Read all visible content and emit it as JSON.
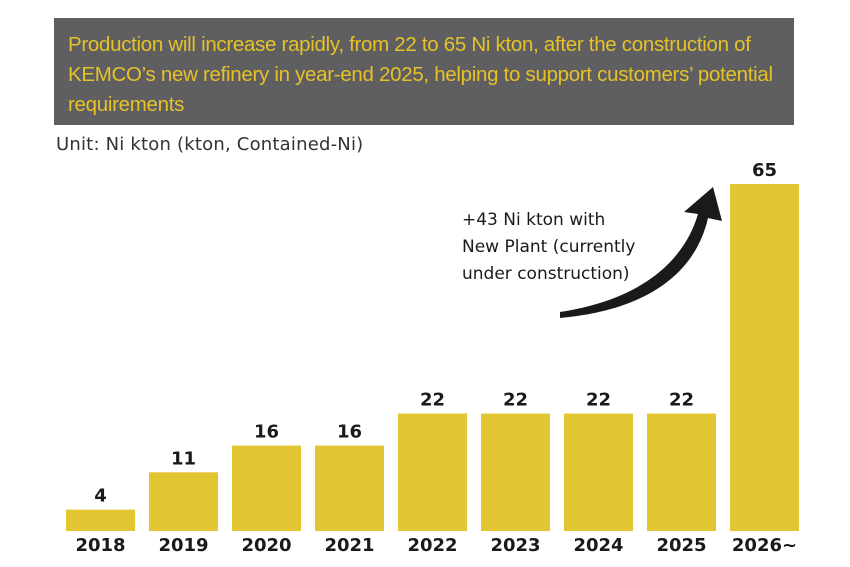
{
  "header": {
    "banner_text": "Production will increase rapidly, from 22 to 65 Ni kton, after the construction of KEMCO’s new refinery in year-end 2025, helping to support customers’ potential requirements",
    "unit_label": "Unit: Ni kton (kton, Contained-Ni)"
  },
  "colors": {
    "bar": "#e2c631",
    "banner_background": "#5f5f61",
    "banner_text": "#e6c227",
    "arrow": "#1a1a1a"
  },
  "chart_data": {
    "type": "bar",
    "title": "Production will increase rapidly, from 22 to 65 Ni kton, after the construction of KEMCO’s new refinery in year-end 2025, helping to support customers’ potential requirements",
    "ylabel": "Unit: Ni kton (kton, Contained-Ni)",
    "xlabel": "",
    "categories": [
      "2018",
      "2019",
      "2020",
      "2021",
      "2022",
      "2023",
      "2024",
      "2025",
      "2026~"
    ],
    "values": [
      4,
      11,
      16,
      16,
      22,
      22,
      22,
      22,
      65
    ],
    "ylim": [
      0,
      65
    ],
    "grid": false,
    "annotations": [
      {
        "lines": [
          "+43 Ni kton with",
          "New Plant (currently",
          "under construction)"
        ],
        "arrow_to_category": "2026~"
      }
    ]
  }
}
